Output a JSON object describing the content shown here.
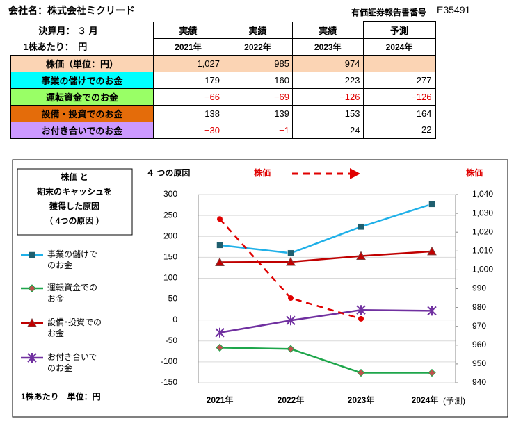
{
  "header": {
    "company": "会社名：株式会社ミクリード",
    "report_label": "有価証券報告書番号",
    "report_number": "E35491"
  },
  "table": {
    "month_label": "決算月： ３ 月",
    "unit_label": "1株あたり：　円",
    "column_heads": [
      "実績",
      "実績",
      "実績",
      "予測"
    ],
    "years": [
      "2021年",
      "2022年",
      "2023年",
      "2024年"
    ],
    "rows": [
      {
        "label": "株価（単位：円）",
        "color": "#fbd4b4",
        "cells": [
          "1,027",
          "985",
          "974"
        ]
      },
      {
        "label": "事業の儲けでのお金",
        "color": "#00ffff",
        "cells": [
          "179",
          "160",
          "223",
          "277"
        ]
      },
      {
        "label": "運転資金でのお金",
        "color": "#99ff66",
        "cells": [
          "−66",
          "−69",
          "−126",
          "−126"
        ]
      },
      {
        "label": "設備・投資でのお金",
        "color": "#e46c0a",
        "cells": [
          "138",
          "139",
          "153",
          "164"
        ]
      },
      {
        "label": "お付き合いでのお金",
        "color": "#cc99ff",
        "cells": [
          "−30",
          "−1",
          "24",
          "22"
        ]
      }
    ]
  },
  "chart_data": {
    "type": "line",
    "legend_title": [
      "株価 と",
      "期末のキャッシュを",
      "獲得した原因",
      "（ 4つの原因 ）"
    ],
    "subtitle": "４ つの原因",
    "arrow_label": "株価",
    "y2_label": "株価",
    "footnote": "1株あたり　単位：円",
    "x_note": "(予測)",
    "categories": [
      "2021年",
      "2022年",
      "2023年",
      "2024年"
    ],
    "ylim": [
      -150,
      300
    ],
    "yticks": [
      -150,
      -100,
      -50,
      0,
      50,
      100,
      150,
      200,
      250,
      300
    ],
    "y2lim": [
      940,
      1040
    ],
    "y2ticks": [
      940,
      950,
      960,
      970,
      980,
      990,
      {
        "value": 1000,
        "label": "1,000"
      },
      {
        "value": 1010,
        "label": "1,010"
      },
      {
        "value": 1020,
        "label": "1,020"
      },
      {
        "value": 1030,
        "label": "1,030"
      },
      {
        "value": 1040,
        "label": "1,040"
      }
    ],
    "grid": true,
    "series": [
      {
        "name": "事業の儲けでのお金",
        "color": "#1fb0e8",
        "marker": "square",
        "values": [
          179,
          160,
          223,
          277
        ]
      },
      {
        "name": "運転資金でのお金",
        "color": "#1ea64b",
        "marker": "diamond",
        "values": [
          -66,
          -69,
          -126,
          -126
        ]
      },
      {
        "name": "設備･投資でのお金",
        "color": "#c00000",
        "marker": "triangle",
        "values": [
          138,
          139,
          153,
          164
        ]
      },
      {
        "name": "お付き合いでのお金",
        "color": "#7030a0",
        "marker": "star",
        "values": [
          -30,
          -1,
          24,
          22
        ]
      },
      {
        "name": "株価",
        "color": "#e00000",
        "marker": "circle",
        "axis": "y2",
        "dashed": true,
        "values": [
          1027,
          985,
          974,
          null
        ]
      }
    ]
  }
}
